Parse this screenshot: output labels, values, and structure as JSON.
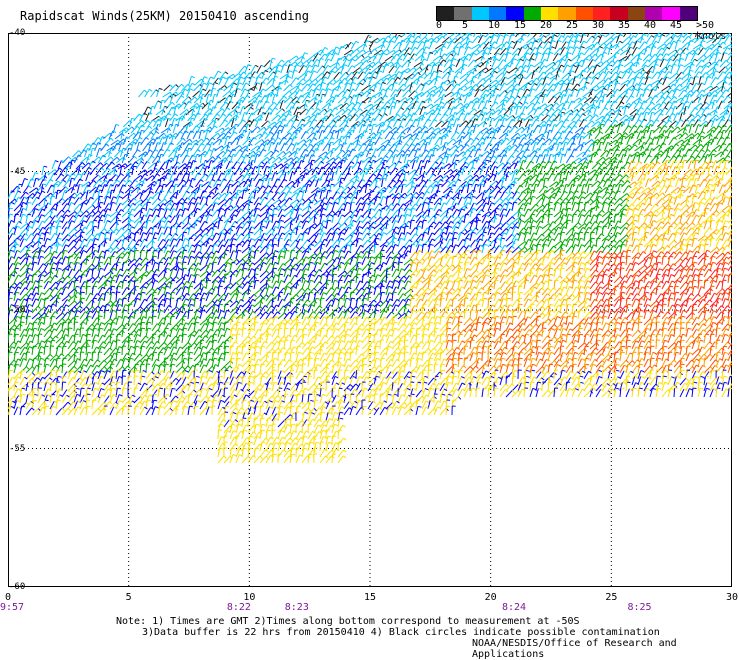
{
  "title": "Rapidscat Winds(25KM) 20150410 ascending",
  "colorbar": {
    "colors": [
      "#202020",
      "#707070",
      "#00c8ff",
      "#0078ff",
      "#0000ff",
      "#00aa00",
      "#ffe000",
      "#ffa000",
      "#ff5000",
      "#ff2020",
      "#c80020",
      "#8b4513",
      "#b000b0",
      "#ff00ff",
      "#50007a"
    ],
    "labels": [
      {
        "text": "0",
        "pos": 0
      },
      {
        "text": "5",
        "pos": 1
      },
      {
        "text": "10",
        "pos": 2
      },
      {
        "text": "15",
        "pos": 3
      },
      {
        "text": "20",
        "pos": 4
      },
      {
        "text": "25",
        "pos": 5
      },
      {
        "text": "30",
        "pos": 6
      },
      {
        "text": "35",
        "pos": 7
      },
      {
        "text": "40",
        "pos": 8
      },
      {
        "text": "45",
        "pos": 9
      },
      {
        "text": ">50 knots",
        "pos": 10
      }
    ]
  },
  "axes": {
    "lat_labels": [
      {
        "text": "-40",
        "value": -40
      },
      {
        "text": "-45",
        "value": -45
      },
      {
        "text": "-50",
        "value": -50
      },
      {
        "text": "-55",
        "value": -55
      },
      {
        "text": "-60",
        "value": -60
      }
    ],
    "lon_labels": [
      {
        "text": "0",
        "value": 0
      },
      {
        "text": "5",
        "value": 5
      },
      {
        "text": "10",
        "value": 10
      },
      {
        "text": "15",
        "value": 15
      },
      {
        "text": "20",
        "value": 20
      },
      {
        "text": "25",
        "value": 25
      },
      {
        "text": "30",
        "value": 30
      }
    ],
    "lon_range": [
      0,
      30
    ],
    "lat_range": [
      -60,
      -40
    ],
    "grid": "dotted"
  },
  "time_labels": [
    {
      "text": "9:57",
      "lon": 0
    },
    {
      "text": "8:22",
      "lon": 9.4
    },
    {
      "text": "8:23",
      "lon": 11.8
    },
    {
      "text": "8:24",
      "lon": 20.8
    },
    {
      "text": "8:25",
      "lon": 26
    }
  ],
  "notes": {
    "line1": "Note: 1) Times are GMT 2)Times along bottom correspond to measurement at -50S",
    "line2": "3)Data buffer is 22 hrs from 20150410 4) Black circles indicate possible contamination"
  },
  "credit": "NOAA/NESDIS/Office of Research and Applications"
}
